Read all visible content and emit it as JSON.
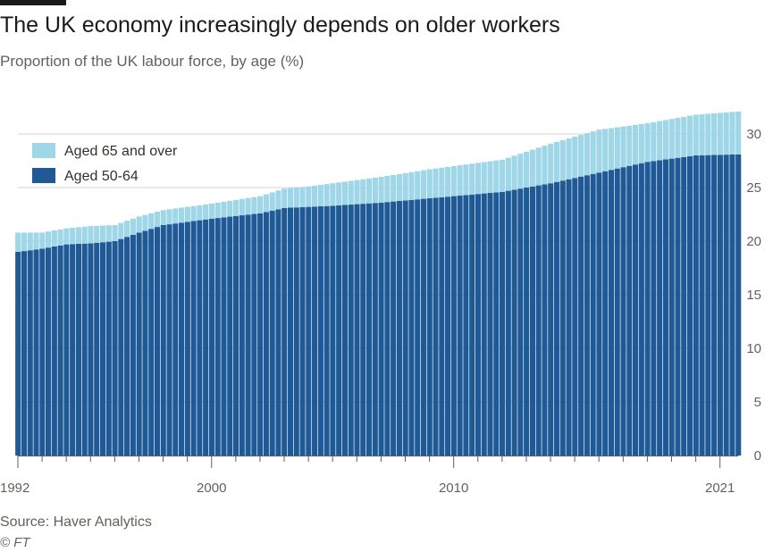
{
  "header": {
    "title": "The UK economy increasingly depends on older workers",
    "subtitle": "Proportion of the UK labour force, by age (%)"
  },
  "footer": {
    "source": "Source: Haver Analytics",
    "credit": "© FT"
  },
  "colors": {
    "aged_65_plus": "#9fd6e8",
    "aged_50_64": "#1f5a96",
    "grid": "#d9d5d0",
    "axis": "#66605c"
  },
  "chart_data": {
    "type": "bar",
    "stacked": true,
    "title": "The UK economy increasingly depends on older workers",
    "subtitle": "Proportion of the UK labour force, by age (%)",
    "x_range": [
      1992.0,
      2021.75
    ],
    "x_tick_labels": [
      "1992",
      "2000",
      "2010",
      "2021"
    ],
    "x_major_ticks": [
      1992,
      2000,
      2010,
      2021
    ],
    "ylim": [
      0,
      32.5
    ],
    "y_ticks": [
      0,
      5,
      10,
      15,
      20,
      25,
      30
    ],
    "y_axis_position": "right",
    "grid": "horizontal",
    "legend": {
      "position": "top-left",
      "order": [
        "Aged 65 and over",
        "Aged 50-64"
      ]
    },
    "total_ticks_x": [
      1992.0,
      1993.0,
      1994.0,
      1995.0,
      1996.0,
      1997.0,
      1998.0,
      2000.0,
      2002.0,
      2004.0,
      2005.0,
      2007.0,
      2009.0,
      2010.0,
      2012.0,
      2014.0,
      2016.0,
      2018.0,
      2020.0,
      2021.75
    ],
    "series": [
      {
        "name": "Aged 50-64",
        "x": [
          1992.0,
          1993.0,
          1994.0,
          1995.0,
          1996.0,
          1997.0,
          1998.0,
          1999.0,
          2000.0,
          2002.0,
          2003.0,
          2004.0,
          2005.0,
          2007.0,
          2009.0,
          2010.0,
          2012.0,
          2014.0,
          2016.0,
          2018.0,
          2020.0,
          2021.75
        ],
        "values": [
          19.0,
          19.3,
          19.7,
          19.8,
          20.0,
          20.8,
          21.5,
          21.8,
          22.1,
          22.6,
          23.1,
          23.2,
          23.3,
          23.6,
          24.0,
          24.2,
          24.6,
          25.4,
          26.4,
          27.4,
          28.0,
          28.1
        ]
      },
      {
        "name": "Aged 65 and over",
        "x": [
          1992.0,
          1993.0,
          1994.0,
          1995.0,
          1996.0,
          1997.0,
          1998.0,
          1999.0,
          2000.0,
          2002.0,
          2003.0,
          2004.0,
          2005.0,
          2007.0,
          2009.0,
          2010.0,
          2012.0,
          2014.0,
          2016.0,
          2018.0,
          2020.0,
          2021.75
        ],
        "values": [
          1.8,
          1.5,
          1.5,
          1.6,
          1.5,
          1.5,
          1.4,
          1.4,
          1.4,
          1.6,
          1.8,
          1.9,
          2.1,
          2.4,
          2.7,
          2.8,
          3.0,
          3.7,
          4.0,
          3.6,
          3.8,
          4.0
        ]
      }
    ]
  }
}
